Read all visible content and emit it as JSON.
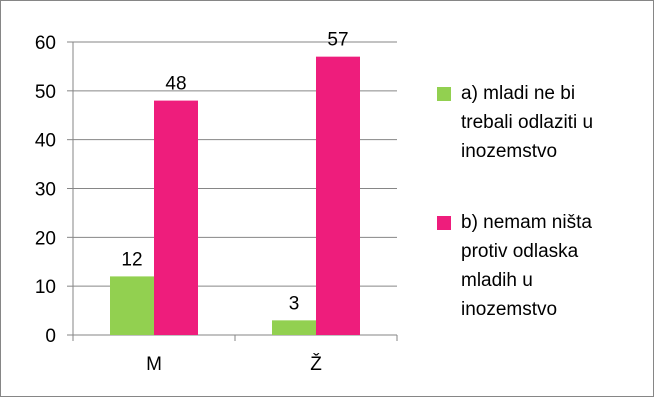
{
  "chart_data": {
    "type": "bar",
    "categories": [
      "M",
      "Ž"
    ],
    "series": [
      {
        "name": "a) mladi ne bi trebali odlaziti u inozemstvo",
        "values": [
          12,
          3
        ],
        "color": "#92d050"
      },
      {
        "name": "b) nemam ništa protiv odlaska mladih u inozemstvo",
        "values": [
          48,
          57
        ],
        "color": "#ee1d7c"
      }
    ],
    "title": "",
    "xlabel": "",
    "ylabel": "",
    "ylim": [
      0,
      60
    ],
    "yticks": [
      "0",
      "10",
      "20",
      "30",
      "40",
      "50",
      "60"
    ],
    "grid": true,
    "legend_position": "right"
  },
  "legend": {
    "items": [
      {
        "lines": [
          "a) mladi ne bi",
          "trebali odlaziti u",
          "inozemstvo"
        ],
        "color": "#92d050"
      },
      {
        "lines": [
          "b) nemam ništa",
          "protiv odlaska",
          "mladih u",
          "inozemstvo"
        ],
        "color": "#ee1d7c"
      }
    ]
  }
}
